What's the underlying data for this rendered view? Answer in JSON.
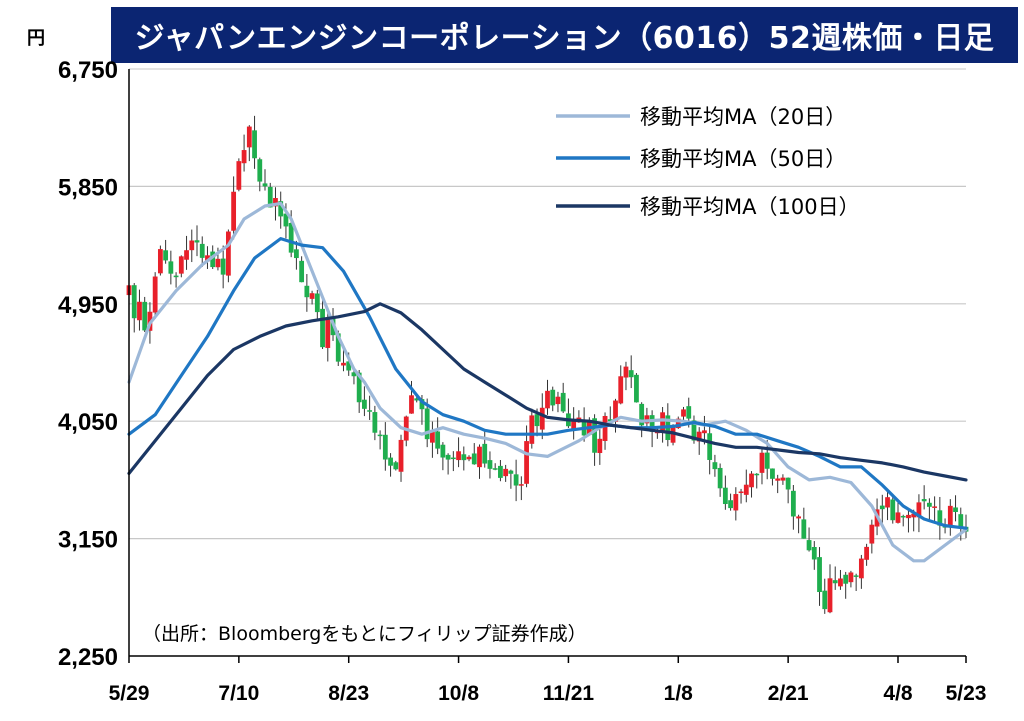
{
  "title": "ジャパンエンジンコーポレーション（6016）52週株価・日足",
  "unit": "円",
  "source": "（出所：Bloombergをもとにフィリップ証券作成）",
  "colors": {
    "title_bg": "#0b2572",
    "candle_up": "#e8202a",
    "candle_down": "#1fae4e",
    "ma20": "#9db8d8",
    "ma50": "#1f77c4",
    "ma100": "#1b3764",
    "grid": "#c8c8c8"
  },
  "chart_data": {
    "type": "candlestick",
    "title": "ジャパンエンジンコーポレーション（6016）52週株価・日足",
    "ylabel": "円",
    "ylim": [
      2250,
      6750
    ],
    "yticks": [
      "6,750",
      "5,850",
      "4,950",
      "4,050",
      "3,150",
      "2,250"
    ],
    "ytick_values": [
      6750,
      5850,
      4950,
      4050,
      3150,
      2250
    ],
    "xticks": [
      "5/29",
      "7/10",
      "8/23",
      "10/8",
      "11/21",
      "1/8",
      "2/21",
      "4/8",
      "5/23"
    ],
    "grid": true,
    "legend_position": "top-right",
    "series": [
      {
        "name": "移動平均MA（20日）",
        "key": "ma20",
        "points": [
          [
            0,
            4350
          ],
          [
            4,
            4800
          ],
          [
            9,
            5050
          ],
          [
            14,
            5250
          ],
          [
            19,
            5400
          ],
          [
            22,
            5600
          ],
          [
            26,
            5700
          ],
          [
            29,
            5720
          ],
          [
            31,
            5600
          ],
          [
            34,
            5300
          ],
          [
            37,
            5000
          ],
          [
            40,
            4700
          ],
          [
            43,
            4450
          ],
          [
            45,
            4350
          ],
          [
            48,
            4150
          ],
          [
            52,
            4000
          ],
          [
            56,
            3950
          ],
          [
            60,
            4000
          ],
          [
            64,
            3950
          ],
          [
            68,
            3920
          ],
          [
            72,
            3880
          ],
          [
            76,
            3800
          ],
          [
            80,
            3780
          ],
          [
            82,
            3820
          ],
          [
            86,
            3900
          ],
          [
            90,
            4000
          ],
          [
            94,
            4080
          ],
          [
            98,
            4050
          ],
          [
            102,
            4060
          ],
          [
            106,
            4050
          ],
          [
            110,
            4020
          ],
          [
            114,
            4050
          ],
          [
            118,
            3980
          ],
          [
            122,
            3880
          ],
          [
            126,
            3700
          ],
          [
            130,
            3600
          ],
          [
            134,
            3620
          ],
          [
            138,
            3580
          ],
          [
            142,
            3400
          ],
          [
            146,
            3100
          ],
          [
            150,
            2980
          ],
          [
            152,
            2980
          ],
          [
            156,
            3100
          ],
          [
            160,
            3220
          ]
        ]
      },
      {
        "name": "移動平均MA（50日）",
        "key": "ma50",
        "points": [
          [
            0,
            3950
          ],
          [
            5,
            4100
          ],
          [
            10,
            4400
          ],
          [
            15,
            4700
          ],
          [
            20,
            5050
          ],
          [
            24,
            5300
          ],
          [
            29,
            5450
          ],
          [
            33,
            5400
          ],
          [
            37,
            5380
          ],
          [
            41,
            5200
          ],
          [
            46,
            4850
          ],
          [
            51,
            4450
          ],
          [
            56,
            4200
          ],
          [
            60,
            4100
          ],
          [
            64,
            4050
          ],
          [
            68,
            3980
          ],
          [
            72,
            3950
          ],
          [
            76,
            3950
          ],
          [
            80,
            3950
          ],
          [
            84,
            3980
          ],
          [
            88,
            4000
          ],
          [
            92,
            4020
          ],
          [
            96,
            4000
          ],
          [
            100,
            4000
          ],
          [
            104,
            4010
          ],
          [
            108,
            4040
          ],
          [
            112,
            4010
          ],
          [
            116,
            3950
          ],
          [
            120,
            3950
          ],
          [
            124,
            3900
          ],
          [
            128,
            3850
          ],
          [
            132,
            3780
          ],
          [
            136,
            3700
          ],
          [
            140,
            3700
          ],
          [
            144,
            3560
          ],
          [
            148,
            3400
          ],
          [
            152,
            3300
          ],
          [
            156,
            3250
          ],
          [
            160,
            3230
          ]
        ]
      },
      {
        "name": "移動平均MA（100日）",
        "key": "ma100",
        "points": [
          [
            0,
            3650
          ],
          [
            5,
            3900
          ],
          [
            10,
            4150
          ],
          [
            15,
            4400
          ],
          [
            20,
            4600
          ],
          [
            25,
            4700
          ],
          [
            30,
            4780
          ],
          [
            35,
            4820
          ],
          [
            40,
            4850
          ],
          [
            45,
            4890
          ],
          [
            48,
            4950
          ],
          [
            52,
            4880
          ],
          [
            56,
            4750
          ],
          [
            60,
            4600
          ],
          [
            64,
            4450
          ],
          [
            68,
            4350
          ],
          [
            72,
            4250
          ],
          [
            76,
            4150
          ],
          [
            80,
            4080
          ],
          [
            84,
            4060
          ],
          [
            88,
            4050
          ],
          [
            92,
            4020
          ],
          [
            96,
            4000
          ],
          [
            100,
            3980
          ],
          [
            104,
            3960
          ],
          [
            108,
            3920
          ],
          [
            112,
            3880
          ],
          [
            116,
            3850
          ],
          [
            120,
            3850
          ],
          [
            124,
            3830
          ],
          [
            128,
            3810
          ],
          [
            132,
            3800
          ],
          [
            136,
            3770
          ],
          [
            140,
            3750
          ],
          [
            144,
            3730
          ],
          [
            148,
            3700
          ],
          [
            152,
            3660
          ],
          [
            156,
            3630
          ],
          [
            160,
            3600
          ]
        ]
      }
    ],
    "candles_up_note": "red = close above open, green = close below open",
    "candle_seed": 20240523,
    "price_path": [
      [
        0,
        5000
      ],
      [
        3,
        4800
      ],
      [
        6,
        5300
      ],
      [
        9,
        5200
      ],
      [
        12,
        5500
      ],
      [
        15,
        5300
      ],
      [
        18,
        5200
      ],
      [
        21,
        6100
      ],
      [
        23,
        6300
      ],
      [
        26,
        5800
      ],
      [
        29,
        5700
      ],
      [
        31,
        5400
      ],
      [
        33,
        5100
      ],
      [
        35,
        5000
      ],
      [
        37,
        4700
      ],
      [
        39,
        4800
      ],
      [
        41,
        4400
      ],
      [
        43,
        4300
      ],
      [
        45,
        4200
      ],
      [
        47,
        4000
      ],
      [
        49,
        3800
      ],
      [
        51,
        3700
      ],
      [
        53,
        4100
      ],
      [
        55,
        4250
      ],
      [
        57,
        4000
      ],
      [
        59,
        3850
      ],
      [
        61,
        3800
      ],
      [
        63,
        3900
      ],
      [
        65,
        3750
      ],
      [
        67,
        3800
      ],
      [
        69,
        3600
      ],
      [
        71,
        3650
      ],
      [
        73,
        3700
      ],
      [
        75,
        3600
      ],
      [
        77,
        4000
      ],
      [
        79,
        4150
      ],
      [
        81,
        4250
      ],
      [
        83,
        4150
      ],
      [
        85,
        4000
      ],
      [
        87,
        4000
      ],
      [
        89,
        3900
      ],
      [
        91,
        4050
      ],
      [
        93,
        4200
      ],
      [
        95,
        4450
      ],
      [
        97,
        4150
      ],
      [
        99,
        4050
      ],
      [
        101,
        4050
      ],
      [
        103,
        4000
      ],
      [
        105,
        4100
      ],
      [
        107,
        4050
      ],
      [
        109,
        3950
      ],
      [
        111,
        3850
      ],
      [
        113,
        3600
      ],
      [
        115,
        3400
      ],
      [
        117,
        3550
      ],
      [
        119,
        3700
      ],
      [
        121,
        3750
      ],
      [
        123,
        3700
      ],
      [
        125,
        3600
      ],
      [
        127,
        3400
      ],
      [
        129,
        3200
      ],
      [
        131,
        2900
      ],
      [
        133,
        2700
      ],
      [
        135,
        2800
      ],
      [
        137,
        2900
      ],
      [
        139,
        2850
      ],
      [
        141,
        3100
      ],
      [
        143,
        3300
      ],
      [
        145,
        3400
      ],
      [
        147,
        3350
      ],
      [
        149,
        3300
      ],
      [
        151,
        3450
      ],
      [
        153,
        3350
      ],
      [
        155,
        3300
      ],
      [
        157,
        3350
      ],
      [
        160,
        3300
      ]
    ]
  }
}
